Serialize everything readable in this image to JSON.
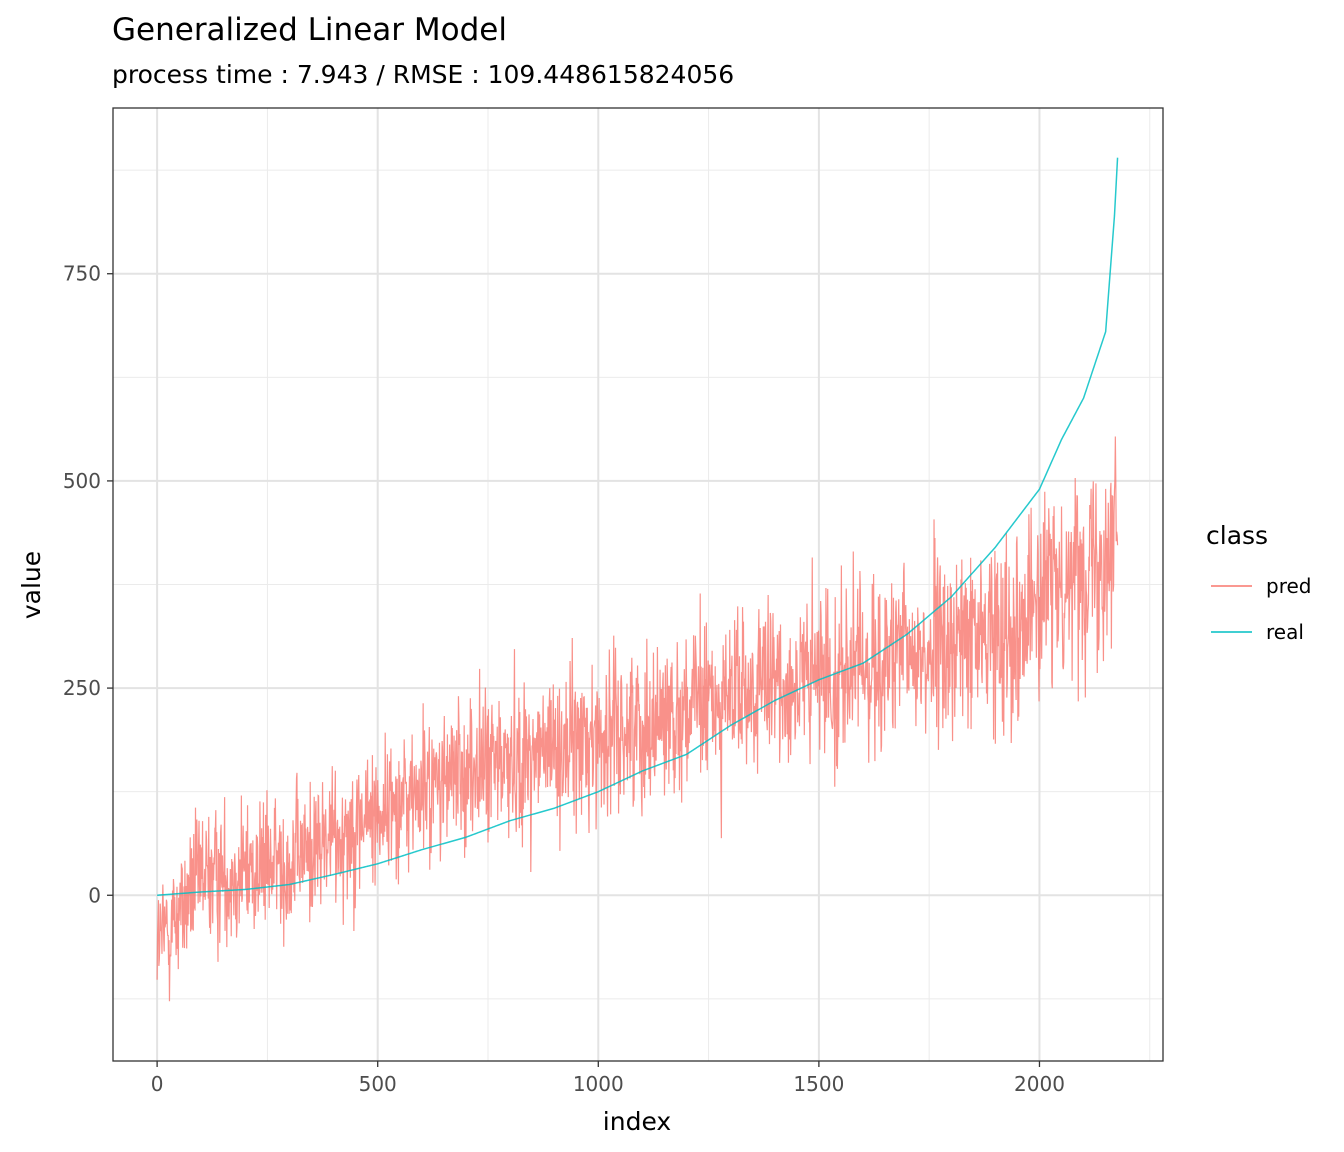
{
  "chart_data": {
    "type": "line",
    "title": "Generalized Linear Model",
    "subtitle": "process time : 7.943 / RMSE : 109.448615824056",
    "xlabel": "index",
    "ylabel": "value",
    "xlim": [
      -100,
      2280
    ],
    "ylim": [
      -200,
      950
    ],
    "x_ticks": [
      0,
      500,
      1000,
      1500,
      2000
    ],
    "x_tick_labels": [
      "0",
      "500",
      "1000",
      "1500",
      "2000"
    ],
    "y_ticks": [
      0,
      250,
      500,
      750
    ],
    "y_tick_labels": [
      "0",
      "250",
      "500",
      "750"
    ],
    "grid": true,
    "legend": {
      "title": "class",
      "position": "right",
      "entries": [
        "pred",
        "real"
      ]
    },
    "n_points": 2178,
    "series": [
      {
        "name": "pred",
        "color": "#F8766D",
        "description": "noisy prediction around a rising trend",
        "trend_points": [
          [
            0,
            -60
          ],
          [
            100,
            20
          ],
          [
            300,
            40
          ],
          [
            500,
            100
          ],
          [
            700,
            150
          ],
          [
            900,
            175
          ],
          [
            1000,
            190
          ],
          [
            1200,
            225
          ],
          [
            1400,
            250
          ],
          [
            1600,
            275
          ],
          [
            1800,
            300
          ],
          [
            1950,
            330
          ],
          [
            2050,
            380
          ],
          [
            2150,
            420
          ],
          [
            2177,
            450
          ]
        ]
      },
      {
        "name": "real",
        "color": "#00BFC4",
        "values_at": [
          [
            0,
            0
          ],
          [
            100,
            4
          ],
          [
            200,
            7
          ],
          [
            300,
            13
          ],
          [
            400,
            25
          ],
          [
            500,
            38
          ],
          [
            600,
            55
          ],
          [
            700,
            70
          ],
          [
            800,
            90
          ],
          [
            900,
            105
          ],
          [
            1000,
            125
          ],
          [
            1100,
            150
          ],
          [
            1200,
            170
          ],
          [
            1300,
            205
          ],
          [
            1400,
            235
          ],
          [
            1500,
            260
          ],
          [
            1600,
            280
          ],
          [
            1700,
            315
          ],
          [
            1800,
            360
          ],
          [
            1900,
            420
          ],
          [
            2000,
            490
          ],
          [
            2050,
            550
          ],
          [
            2100,
            600
          ],
          [
            2150,
            680
          ],
          [
            2160,
            750
          ],
          [
            2170,
            820
          ],
          [
            2177,
            890
          ]
        ]
      }
    ]
  }
}
